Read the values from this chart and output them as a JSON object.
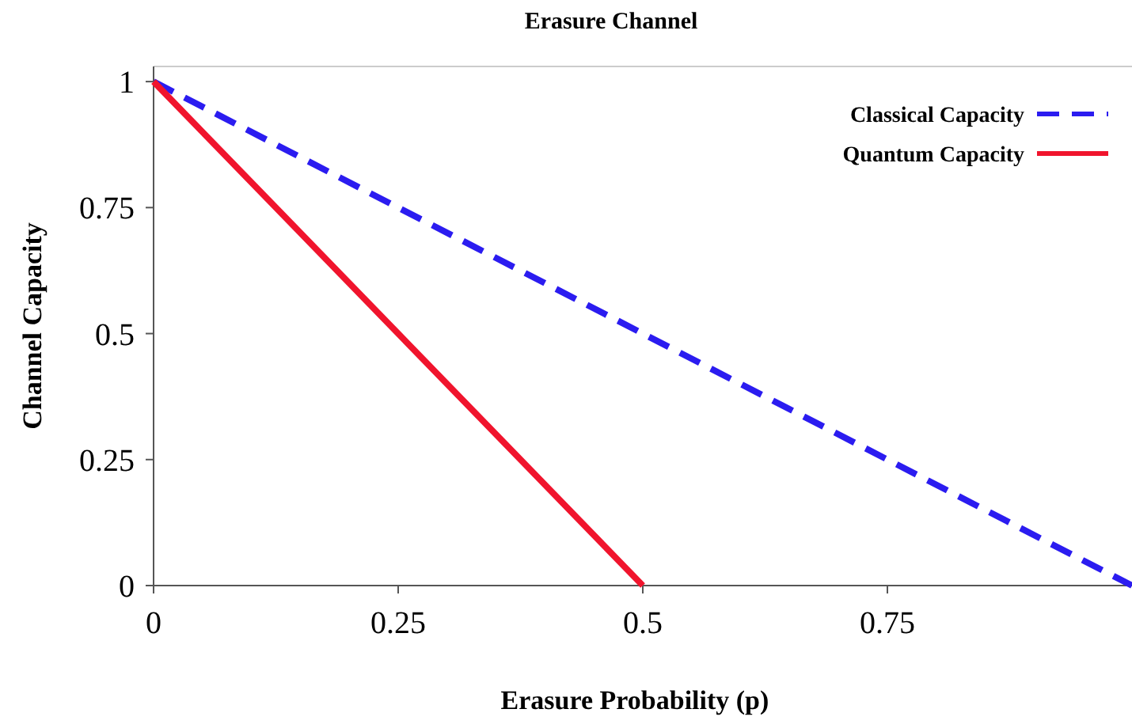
{
  "chart_data": {
    "type": "line",
    "title": "Erasure Channel",
    "xlabel": "Erasure Probability (p)",
    "ylabel": "Channel Capacity",
    "xlim": [
      0,
      1
    ],
    "xticks": [
      0,
      0.25,
      0.5,
      0.75
    ],
    "ylim": [
      0,
      1.03
    ],
    "yticks": [
      0,
      0.25,
      0.5,
      0.75,
      1
    ],
    "legend": "top right",
    "grid": false,
    "series": [
      {
        "name": "Classical Capacity",
        "color": "#2b1cf0",
        "line_style": "dashed",
        "x": [
          0,
          1
        ],
        "values": [
          1,
          0
        ]
      },
      {
        "name": "Quantum Capacity",
        "color": "#f0142d",
        "line_style": "solid",
        "x": [
          0,
          0.5
        ],
        "values": [
          1,
          0
        ]
      }
    ]
  }
}
